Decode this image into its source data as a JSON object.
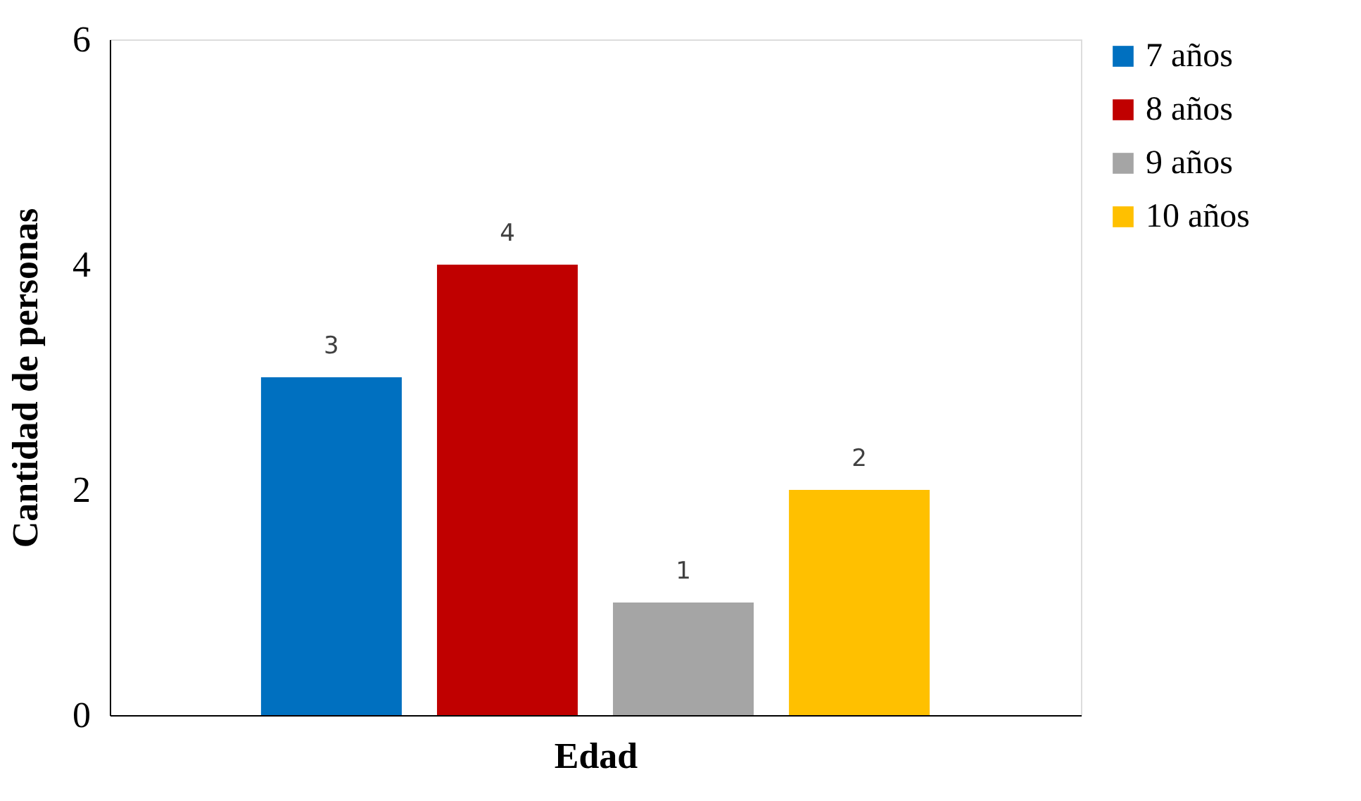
{
  "chart_data": {
    "type": "bar",
    "xlabel": "Edad",
    "ylabel": "Cantidad de personas",
    "categories": [
      null
    ],
    "series": [
      {
        "name": "7 años",
        "color": "#0070c0",
        "values": [
          3
        ]
      },
      {
        "name": "8 años",
        "color": "#c00000",
        "values": [
          4
        ]
      },
      {
        "name": "9 años",
        "color": "#a5a5a5",
        "values": [
          1
        ]
      },
      {
        "name": "10 años",
        "color": "#ffc000",
        "values": [
          2
        ]
      }
    ],
    "ylim": [
      0,
      6
    ],
    "yticks": [
      0,
      2,
      4,
      6
    ],
    "grid": false,
    "legend": "right",
    "data_labels": true
  }
}
